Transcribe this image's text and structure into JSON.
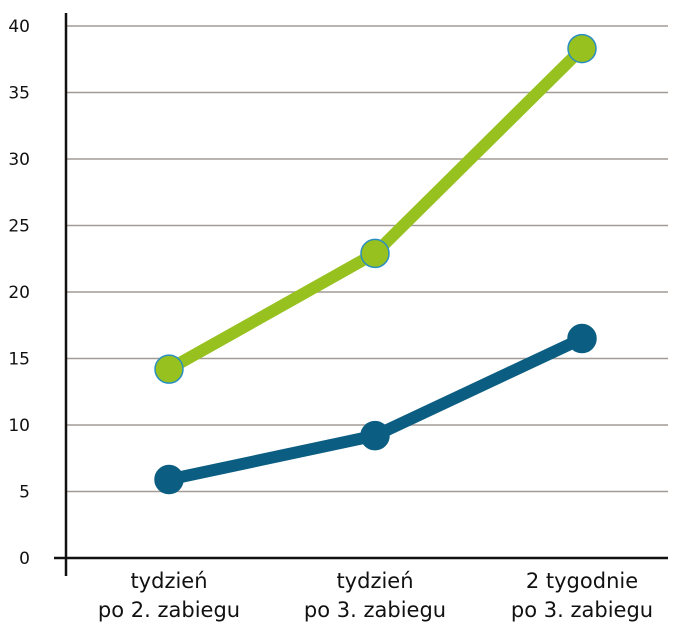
{
  "chart_data": {
    "type": "line",
    "title": "",
    "xlabel": "",
    "ylabel": "",
    "ylim": [
      0,
      40
    ],
    "yticks": [
      0,
      5,
      10,
      15,
      20,
      25,
      30,
      35,
      40
    ],
    "grid": true,
    "categories": [
      [
        "tydzień",
        "po 2. zabiegu"
      ],
      [
        "tydzień",
        "po 3. zabiegu"
      ],
      [
        "2 tygodnie",
        "po 3. zabiegu"
      ]
    ],
    "series": [
      {
        "values": [
          14.2,
          22.9,
          38.3
        ],
        "color": "#97c11f",
        "marker_edge": "#2a8fc0"
      },
      {
        "values": [
          5.9,
          9.2,
          16.5
        ],
        "color": "#0b5e82",
        "marker_edge": "#0b5e82"
      }
    ],
    "gridline_color": "#a39b95",
    "axis_color": "#111111"
  }
}
